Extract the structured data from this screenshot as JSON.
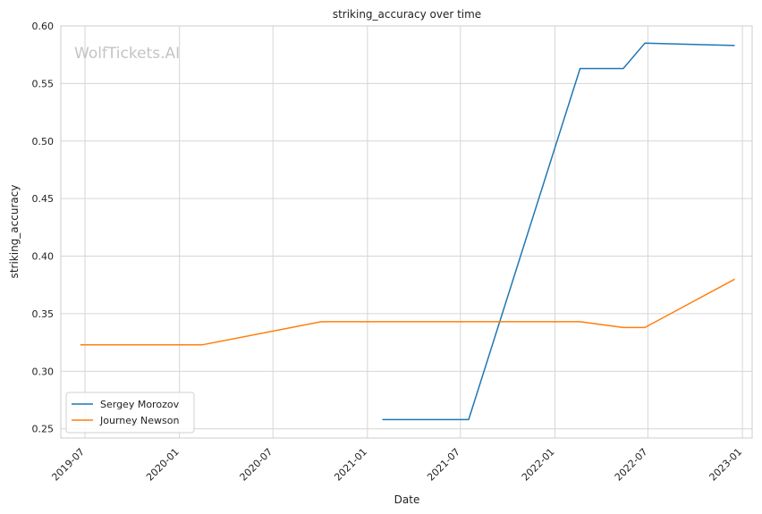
{
  "chart_data": {
    "type": "line",
    "title": "striking_accuracy over time",
    "xlabel": "Date",
    "ylabel": "striking_accuracy",
    "watermark": "WolfTickets.AI",
    "x_ticks": [
      "2019-07",
      "2020-01",
      "2020-07",
      "2021-01",
      "2021-07",
      "2022-01",
      "2022-07",
      "2023-01"
    ],
    "y_ticks": [
      "0.25",
      "0.30",
      "0.35",
      "0.40",
      "0.45",
      "0.50",
      "0.55",
      "0.60"
    ],
    "ylim": [
      0.242,
      0.6
    ],
    "xlim": [
      "2019-05-15",
      "2023-01-20"
    ],
    "grid": true,
    "legend_position": "lower-left",
    "series": [
      {
        "name": "Sergey Morozov",
        "color": "#1f77b4",
        "points": [
          {
            "x": "2021-01-30",
            "y": 0.258
          },
          {
            "x": "2021-07-17",
            "y": 0.258
          },
          {
            "x": "2022-02-19",
            "y": 0.563
          },
          {
            "x": "2022-05-14",
            "y": 0.563
          },
          {
            "x": "2022-06-25",
            "y": 0.585
          },
          {
            "x": "2022-12-17",
            "y": 0.583
          }
        ]
      },
      {
        "name": "Journey Newson",
        "color": "#ff7f0e",
        "points": [
          {
            "x": "2019-06-22",
            "y": 0.323
          },
          {
            "x": "2020-02-15",
            "y": 0.323
          },
          {
            "x": "2020-10-03",
            "y": 0.343
          },
          {
            "x": "2022-02-19",
            "y": 0.343
          },
          {
            "x": "2022-05-14",
            "y": 0.338
          },
          {
            "x": "2022-06-25",
            "y": 0.338
          },
          {
            "x": "2022-12-17",
            "y": 0.38
          }
        ]
      }
    ]
  }
}
